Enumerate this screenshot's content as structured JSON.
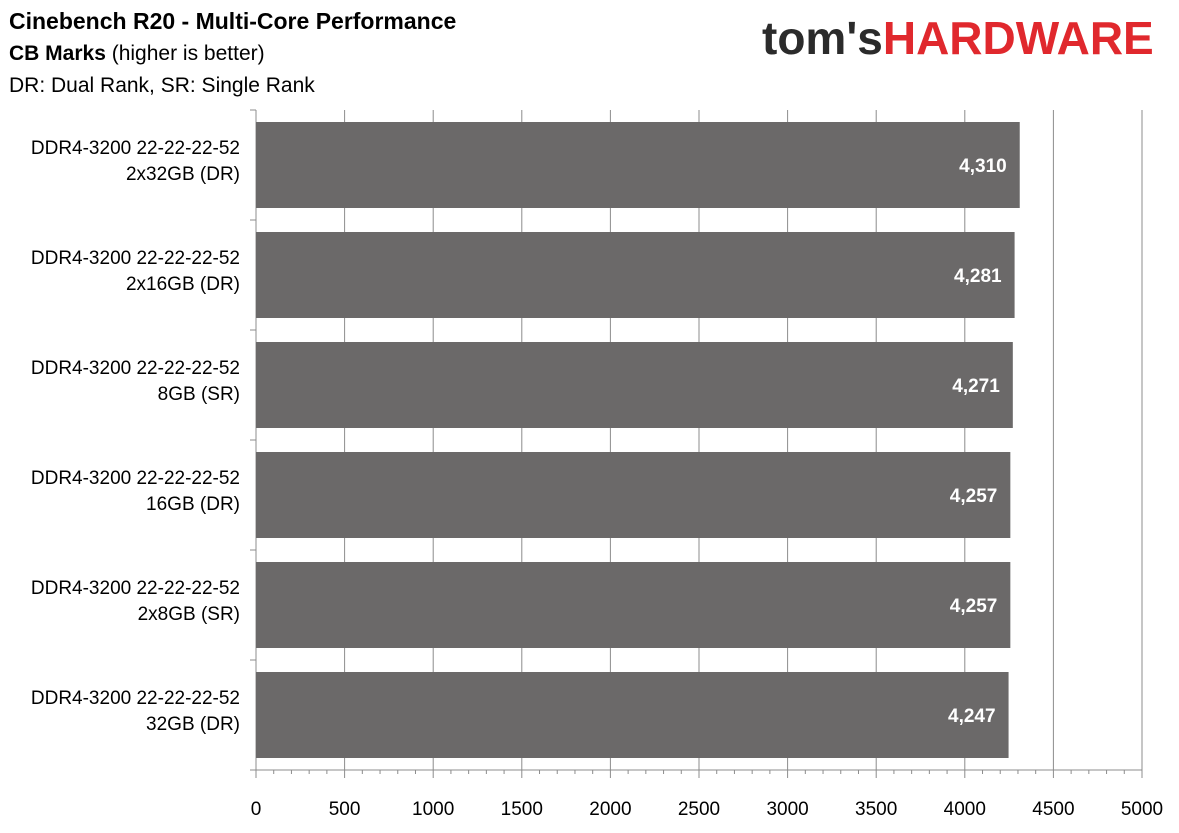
{
  "header": {
    "title": "Cinebench R20 - Multi-Core Performance",
    "subtitle_bold": "CB Marks",
    "subtitle_rest": " (higher is better)",
    "note": "DR: Dual Rank, SR: Single Rank"
  },
  "logo": {
    "part1": "tom's",
    "part2": "HARDWARE",
    "color_dark": "#2b2b2b",
    "color_red": "#e0282d"
  },
  "chart_data": {
    "type": "bar",
    "orientation": "horizontal",
    "title": "Cinebench R20 - Multi-Core Performance",
    "subtitle": "CB Marks (higher is better)",
    "categories": [
      [
        "DDR4-3200 22-22-22-52",
        "2x32GB (DR)"
      ],
      [
        "DDR4-3200 22-22-22-52",
        "2x16GB (DR)"
      ],
      [
        "DDR4-3200 22-22-22-52",
        "8GB (SR)"
      ],
      [
        "DDR4-3200 22-22-22-52",
        "16GB (DR)"
      ],
      [
        "DDR4-3200 22-22-22-52",
        "2x8GB (SR)"
      ],
      [
        "DDR4-3200 22-22-22-52",
        "32GB (DR)"
      ]
    ],
    "values": [
      4310,
      4281,
      4271,
      4257,
      4257,
      4247
    ],
    "value_labels": [
      "4,310",
      "4,281",
      "4,271",
      "4,257",
      "4,257",
      "4,247"
    ],
    "xlim": [
      0,
      5000
    ],
    "xticks": [
      0,
      500,
      1000,
      1500,
      2000,
      2500,
      3000,
      3500,
      4000,
      4500,
      5000
    ],
    "grid": true,
    "bar_color": "#6b6969",
    "gridline_color": "#8c8c8c"
  }
}
